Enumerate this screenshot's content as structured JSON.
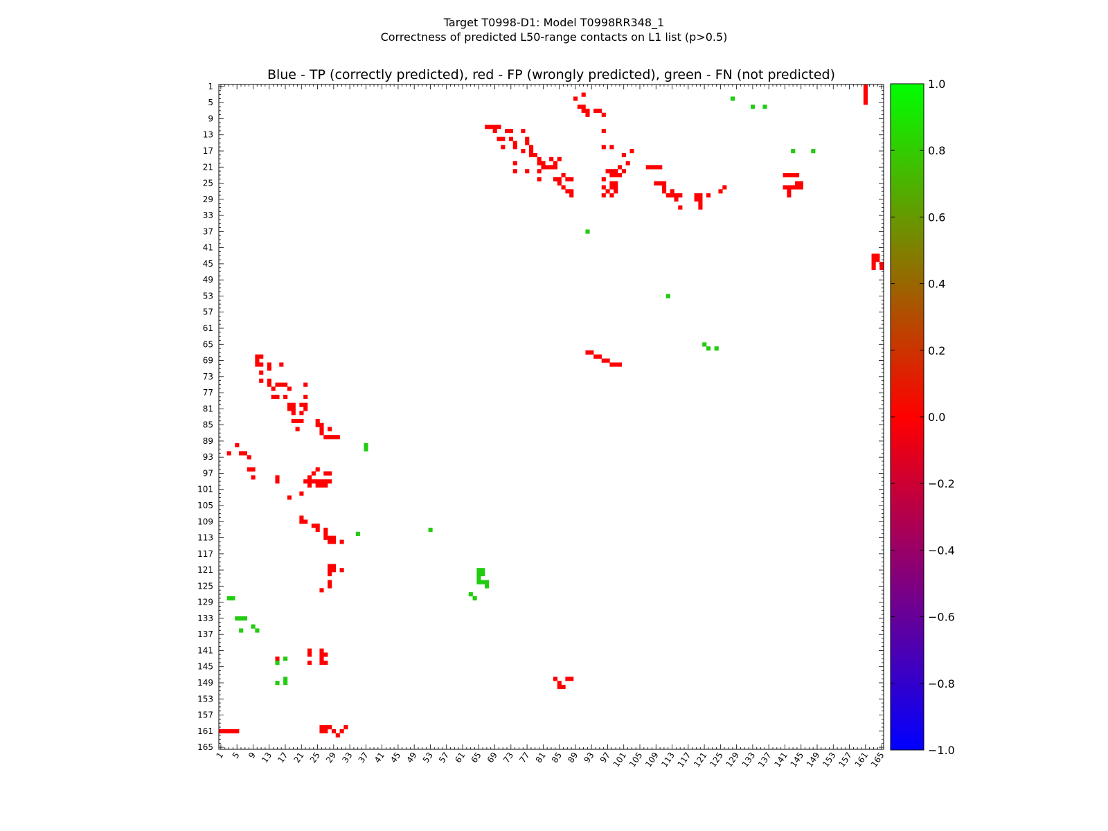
{
  "chart_data": {
    "type": "heatmap",
    "title_line1": "Target T0998-D1: Model T0998RR348_1",
    "title_line2": "Correctness of predicted L50-range contacts on L1 list (p>0.5)",
    "subtitle": "Blue - TP (correctly predicted), red - FP (wrongly predicted), green - FN (not predicted)",
    "xlabel": "",
    "ylabel": "",
    "axis_range": [
      1,
      165
    ],
    "tick_labels": [
      "1",
      "5",
      "9",
      "13",
      "17",
      "21",
      "25",
      "29",
      "33",
      "37",
      "41",
      "45",
      "49",
      "53",
      "57",
      "61",
      "65",
      "69",
      "73",
      "77",
      "81",
      "85",
      "89",
      "93",
      "97",
      "101",
      "105",
      "109",
      "113",
      "117",
      "121",
      "125",
      "129",
      "133",
      "137",
      "141",
      "145",
      "149",
      "153",
      "157",
      "161",
      "165"
    ],
    "colorbar": {
      "min": -1.0,
      "max": 1.0,
      "tick_labels": [
        "1.0",
        "0.8",
        "0.6",
        "0.4",
        "0.2",
        "0.0",
        "−0.2",
        "−0.4",
        "−0.6",
        "−0.8",
        "−1.0"
      ],
      "stops": [
        "#0000ff",
        "#ff0000",
        "#00ff00"
      ]
    },
    "colors": {
      "fp": "#ff0000",
      "fn": "#22cc11",
      "tp": "#0000ff"
    },
    "series": [
      {
        "name": "FP (wrongly predicted)",
        "value": 0.0,
        "points": [
          [
            1,
            161
          ],
          [
            2,
            161
          ],
          [
            3,
            161
          ],
          [
            4,
            161
          ],
          [
            5,
            161
          ],
          [
            3,
            92
          ],
          [
            5,
            90
          ],
          [
            6,
            92
          ],
          [
            7,
            92
          ],
          [
            8,
            93
          ],
          [
            8,
            96
          ],
          [
            9,
            96
          ],
          [
            9,
            98
          ],
          [
            10,
            68
          ],
          [
            10,
            69
          ],
          [
            10,
            70
          ],
          [
            11,
            68
          ],
          [
            11,
            70
          ],
          [
            11,
            72
          ],
          [
            11,
            74
          ],
          [
            13,
            70
          ],
          [
            13,
            71
          ],
          [
            13,
            74
          ],
          [
            13,
            75
          ],
          [
            14,
            76
          ],
          [
            14,
            78
          ],
          [
            15,
            75
          ],
          [
            15,
            78
          ],
          [
            15,
            98
          ],
          [
            15,
            99
          ],
          [
            15,
            143
          ],
          [
            16,
            70
          ],
          [
            16,
            75
          ],
          [
            17,
            75
          ],
          [
            17,
            78
          ],
          [
            18,
            76
          ],
          [
            18,
            80
          ],
          [
            18,
            81
          ],
          [
            18,
            103
          ],
          [
            19,
            80
          ],
          [
            19,
            81
          ],
          [
            19,
            82
          ],
          [
            19,
            84
          ],
          [
            20,
            84
          ],
          [
            20,
            86
          ],
          [
            21,
            80
          ],
          [
            21,
            82
          ],
          [
            21,
            84
          ],
          [
            21,
            102
          ],
          [
            21,
            108
          ],
          [
            21,
            109
          ],
          [
            22,
            75
          ],
          [
            22,
            78
          ],
          [
            22,
            80
          ],
          [
            22,
            81
          ],
          [
            22,
            99
          ],
          [
            22,
            109
          ],
          [
            23,
            98
          ],
          [
            23,
            99
          ],
          [
            23,
            100
          ],
          [
            23,
            141
          ],
          [
            23,
            142
          ],
          [
            23,
            144
          ],
          [
            24,
            97
          ],
          [
            24,
            99
          ],
          [
            24,
            110
          ],
          [
            25,
            84
          ],
          [
            25,
            85
          ],
          [
            25,
            96
          ],
          [
            25,
            99
          ],
          [
            25,
            100
          ],
          [
            25,
            110
          ],
          [
            25,
            111
          ],
          [
            26,
            85
          ],
          [
            26,
            86
          ],
          [
            26,
            87
          ],
          [
            26,
            99
          ],
          [
            26,
            100
          ],
          [
            26,
            126
          ],
          [
            26,
            141
          ],
          [
            26,
            142
          ],
          [
            26,
            143
          ],
          [
            26,
            144
          ],
          [
            27,
            88
          ],
          [
            27,
            97
          ],
          [
            27,
            99
          ],
          [
            27,
            100
          ],
          [
            27,
            111
          ],
          [
            27,
            112
          ],
          [
            27,
            113
          ],
          [
            27,
            142
          ],
          [
            27,
            144
          ],
          [
            28,
            86
          ],
          [
            28,
            88
          ],
          [
            28,
            97
          ],
          [
            28,
            99
          ],
          [
            28,
            113
          ],
          [
            28,
            114
          ],
          [
            28,
            120
          ],
          [
            28,
            121
          ],
          [
            28,
            122
          ],
          [
            28,
            124
          ],
          [
            28,
            125
          ],
          [
            29,
            88
          ],
          [
            29,
            113
          ],
          [
            29,
            114
          ],
          [
            29,
            120
          ],
          [
            29,
            121
          ],
          [
            30,
            88
          ],
          [
            31,
            114
          ],
          [
            31,
            121
          ],
          [
            67,
            11
          ],
          [
            68,
            11
          ],
          [
            69,
            11
          ],
          [
            69,
            12
          ],
          [
            70,
            14
          ],
          [
            70,
            11
          ],
          [
            71,
            14
          ],
          [
            71,
            16
          ],
          [
            72,
            12
          ],
          [
            73,
            12
          ],
          [
            73,
            14
          ],
          [
            74,
            15
          ],
          [
            74,
            16
          ],
          [
            74,
            20
          ],
          [
            74,
            22
          ],
          [
            76,
            12
          ],
          [
            76,
            17
          ],
          [
            77,
            14
          ],
          [
            77,
            15
          ],
          [
            77,
            22
          ],
          [
            78,
            16
          ],
          [
            78,
            17
          ],
          [
            78,
            18
          ],
          [
            79,
            18
          ],
          [
            80,
            19
          ],
          [
            80,
            20
          ],
          [
            80,
            22
          ],
          [
            80,
            24
          ],
          [
            81,
            20
          ],
          [
            81,
            21
          ],
          [
            82,
            21
          ],
          [
            83,
            19
          ],
          [
            83,
            21
          ],
          [
            84,
            20
          ],
          [
            84,
            21
          ],
          [
            84,
            24
          ],
          [
            85,
            19
          ],
          [
            85,
            24
          ],
          [
            85,
            25
          ],
          [
            86,
            23
          ],
          [
            86,
            26
          ],
          [
            87,
            24
          ],
          [
            87,
            27
          ],
          [
            88,
            24
          ],
          [
            88,
            27
          ],
          [
            88,
            28
          ],
          [
            89,
            4
          ],
          [
            90,
            6
          ],
          [
            91,
            3
          ],
          [
            91,
            6
          ],
          [
            91,
            7
          ],
          [
            92,
            7
          ],
          [
            92,
            8
          ],
          [
            94,
            7
          ],
          [
            95,
            7
          ],
          [
            96,
            8
          ],
          [
            96,
            12
          ],
          [
            96,
            16
          ],
          [
            96,
            24
          ],
          [
            96,
            26
          ],
          [
            96,
            28
          ],
          [
            97,
            22
          ],
          [
            97,
            27
          ],
          [
            98,
            16
          ],
          [
            98,
            22
          ],
          [
            98,
            23
          ],
          [
            98,
            25
          ],
          [
            98,
            26
          ],
          [
            98,
            28
          ],
          [
            99,
            22
          ],
          [
            99,
            23
          ],
          [
            99,
            25
          ],
          [
            99,
            26
          ],
          [
            99,
            27
          ],
          [
            100,
            23
          ],
          [
            100,
            21
          ],
          [
            101,
            18
          ],
          [
            101,
            22
          ],
          [
            102,
            20
          ],
          [
            103,
            17
          ],
          [
            107,
            21
          ],
          [
            108,
            21
          ],
          [
            109,
            21
          ],
          [
            109,
            25
          ],
          [
            110,
            21
          ],
          [
            110,
            25
          ],
          [
            111,
            25
          ],
          [
            111,
            26
          ],
          [
            111,
            27
          ],
          [
            112,
            28
          ],
          [
            113,
            27
          ],
          [
            113,
            28
          ],
          [
            114,
            28
          ],
          [
            114,
            29
          ],
          [
            115,
            28
          ],
          [
            115,
            31
          ],
          [
            119,
            28
          ],
          [
            119,
            29
          ],
          [
            120,
            28
          ],
          [
            120,
            29
          ],
          [
            120,
            30
          ],
          [
            120,
            31
          ],
          [
            122,
            28
          ],
          [
            125,
            27
          ],
          [
            126,
            26
          ],
          [
            141,
            23
          ],
          [
            141,
            26
          ],
          [
            142,
            23
          ],
          [
            142,
            26
          ],
          [
            142,
            27
          ],
          [
            142,
            28
          ],
          [
            143,
            23
          ],
          [
            143,
            26
          ],
          [
            144,
            23
          ],
          [
            144,
            25
          ],
          [
            144,
            26
          ],
          [
            145,
            25
          ],
          [
            145,
            26
          ],
          [
            161,
            1
          ],
          [
            161,
            2
          ],
          [
            161,
            3
          ],
          [
            161,
            4
          ],
          [
            161,
            5
          ],
          [
            163,
            43
          ],
          [
            163,
            44
          ],
          [
            163,
            45
          ],
          [
            163,
            46
          ],
          [
            164,
            43
          ],
          [
            164,
            44
          ],
          [
            165,
            45
          ],
          [
            165,
            46
          ],
          [
            166,
            43
          ],
          [
            166,
            44
          ],
          [
            166,
            46
          ],
          [
            166,
            47
          ],
          [
            92,
            67
          ],
          [
            93,
            67
          ],
          [
            94,
            68
          ],
          [
            95,
            68
          ],
          [
            96,
            69
          ],
          [
            97,
            69
          ],
          [
            98,
            70
          ],
          [
            99,
            70
          ],
          [
            100,
            70
          ],
          [
            26,
            160
          ],
          [
            26,
            161
          ],
          [
            27,
            160
          ],
          [
            27,
            161
          ],
          [
            28,
            160
          ],
          [
            29,
            161
          ],
          [
            30,
            162
          ],
          [
            31,
            161
          ],
          [
            32,
            160
          ],
          [
            84,
            148
          ],
          [
            85,
            149
          ],
          [
            85,
            150
          ],
          [
            86,
            150
          ],
          [
            87,
            148
          ],
          [
            88,
            148
          ]
        ]
      },
      {
        "name": "FN (not predicted)",
        "value": 1.0,
        "points": [
          [
            4,
            128
          ],
          [
            6,
            133
          ],
          [
            6,
            136
          ],
          [
            10,
            136
          ],
          [
            15,
            144
          ],
          [
            15,
            149
          ],
          [
            17,
            143
          ],
          [
            17,
            148
          ],
          [
            17,
            149
          ],
          [
            3,
            128
          ],
          [
            5,
            133
          ],
          [
            7,
            133
          ],
          [
            9,
            135
          ],
          [
            35,
            112
          ],
          [
            37,
            90
          ],
          [
            37,
            91
          ],
          [
            53,
            111
          ],
          [
            63,
            127
          ],
          [
            64,
            128
          ],
          [
            65,
            121
          ],
          [
            65,
            122
          ],
          [
            65,
            123
          ],
          [
            65,
            124
          ],
          [
            66,
            121
          ],
          [
            66,
            122
          ],
          [
            66,
            124
          ],
          [
            67,
            124
          ],
          [
            67,
            125
          ],
          [
            92,
            37
          ],
          [
            112,
            53
          ],
          [
            121,
            65
          ],
          [
            122,
            66
          ],
          [
            124,
            66
          ],
          [
            128,
            4
          ],
          [
            133,
            6
          ],
          [
            136,
            6
          ],
          [
            143,
            17
          ],
          [
            148,
            17
          ]
        ]
      },
      {
        "name": "TP (correctly predicted)",
        "value": -1.0,
        "points": []
      }
    ]
  }
}
